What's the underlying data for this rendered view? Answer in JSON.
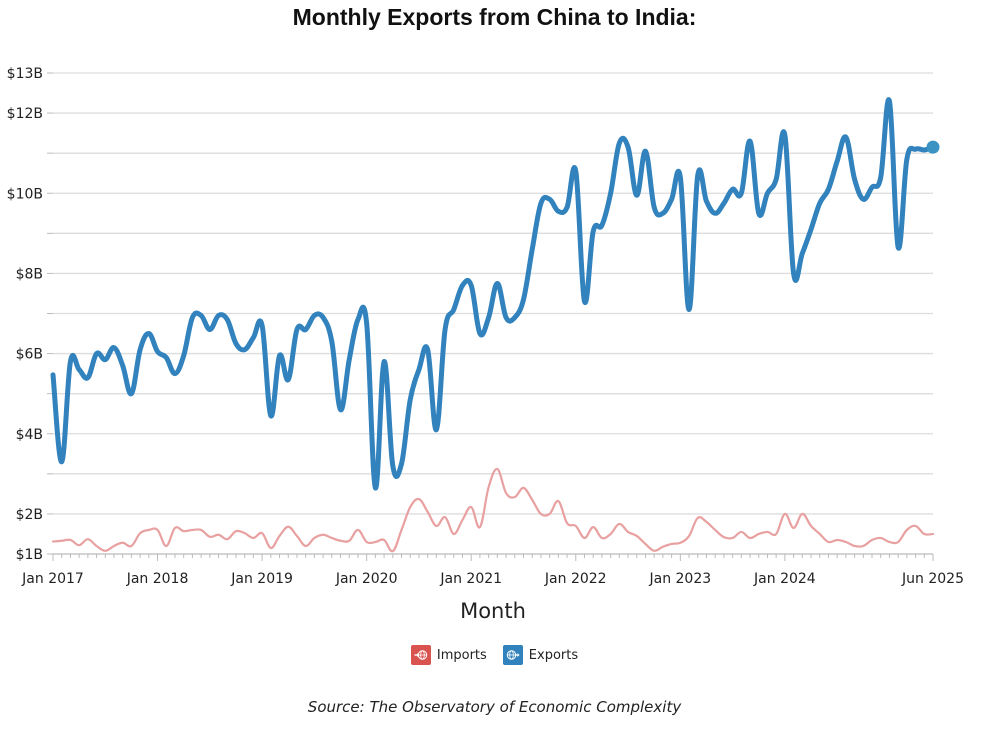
{
  "colors": {
    "exports": "#3182bd",
    "imports": "#e8a0a0",
    "imports_legend": "#d9534f",
    "grid": "#dddddd",
    "axis": "#bbbbbb",
    "end_marker": "#3a93c3"
  },
  "legend": {
    "items": [
      {
        "label": "Imports",
        "icon": "globe-arrow-in-icon"
      },
      {
        "label": "Exports",
        "icon": "globe-arrow-out-icon"
      }
    ]
  },
  "source": "Source: The Observatory of Economic Complexity",
  "chart_data": {
    "type": "line",
    "title": "Monthly Exports from China to India:",
    "xlabel": "Month",
    "ylabel": "",
    "ylim": [
      1,
      13
    ],
    "grid": true,
    "legend_position": "bottom",
    "y_ticks": [
      {
        "value": 13,
        "label": "$13B"
      },
      {
        "value": 12,
        "label": "$12B"
      },
      {
        "value": 11,
        "label": ""
      },
      {
        "value": 10,
        "label": "$10B"
      },
      {
        "value": 9,
        "label": ""
      },
      {
        "value": 8,
        "label": "$8B"
      },
      {
        "value": 7,
        "label": ""
      },
      {
        "value": 6,
        "label": "$6B"
      },
      {
        "value": 5,
        "label": ""
      },
      {
        "value": 4,
        "label": "$4B"
      },
      {
        "value": 3,
        "label": ""
      },
      {
        "value": 2,
        "label": "$2B"
      },
      {
        "value": 1,
        "label": "$1B"
      }
    ],
    "x_start": "Jan 2017",
    "x_end": "Jun 2025",
    "x_count": 102,
    "x_ticks": [
      {
        "index": 0,
        "label": "Jan 2017"
      },
      {
        "index": 12,
        "label": "Jan 2018"
      },
      {
        "index": 24,
        "label": "Jan 2019"
      },
      {
        "index": 36,
        "label": "Jan 2020"
      },
      {
        "index": 48,
        "label": "Jan 2021"
      },
      {
        "index": 60,
        "label": "Jan 2022"
      },
      {
        "index": 72,
        "label": "Jan 2023"
      },
      {
        "index": 84,
        "label": "Jan 2024"
      },
      {
        "index": 101,
        "label": "Jun 2025"
      }
    ],
    "units": "USD billions",
    "series": [
      {
        "name": "Exports",
        "values": [
          5.47,
          3.3,
          5.8,
          5.6,
          5.4,
          6.0,
          5.85,
          6.15,
          5.7,
          5.0,
          6.1,
          6.5,
          6.05,
          5.9,
          5.5,
          5.95,
          6.9,
          6.95,
          6.6,
          6.95,
          6.85,
          6.25,
          6.1,
          6.4,
          6.7,
          4.45,
          5.95,
          5.35,
          6.6,
          6.6,
          6.95,
          6.9,
          6.3,
          4.6,
          5.85,
          6.85,
          6.75,
          2.65,
          5.8,
          3.2,
          3.25,
          4.85,
          5.6,
          6.1,
          4.1,
          6.6,
          7.1,
          7.7,
          7.7,
          6.5,
          6.9,
          7.75,
          6.9,
          6.9,
          7.35,
          8.6,
          9.75,
          9.85,
          9.55,
          9.65,
          10.55,
          7.3,
          9.05,
          9.2,
          10.0,
          11.25,
          11.15,
          9.95,
          11.05,
          9.65,
          9.5,
          9.85,
          10.4,
          7.1,
          10.45,
          9.8,
          9.5,
          9.75,
          10.1,
          10.0,
          11.3,
          9.5,
          10.0,
          10.35,
          11.45,
          8.0,
          8.5,
          9.1,
          9.75,
          10.1,
          10.8,
          11.4,
          10.35,
          9.85,
          10.15,
          10.4,
          12.3,
          8.65,
          10.85,
          11.1,
          11.08,
          11.15
        ]
      },
      {
        "name": "Imports",
        "values": [
          1.31,
          1.33,
          1.35,
          1.22,
          1.37,
          1.2,
          1.08,
          1.2,
          1.28,
          1.2,
          1.52,
          1.6,
          1.6,
          1.2,
          1.65,
          1.57,
          1.6,
          1.6,
          1.43,
          1.48,
          1.37,
          1.57,
          1.52,
          1.4,
          1.52,
          1.15,
          1.45,
          1.68,
          1.45,
          1.2,
          1.4,
          1.48,
          1.4,
          1.33,
          1.33,
          1.6,
          1.3,
          1.3,
          1.35,
          1.07,
          1.6,
          2.17,
          2.37,
          2.05,
          1.7,
          1.92,
          1.5,
          1.85,
          2.17,
          1.67,
          2.67,
          3.12,
          2.52,
          2.42,
          2.65,
          2.35,
          2.0,
          2.0,
          2.32,
          1.77,
          1.7,
          1.4,
          1.67,
          1.4,
          1.5,
          1.75,
          1.55,
          1.45,
          1.25,
          1.08,
          1.18,
          1.25,
          1.28,
          1.45,
          1.9,
          1.8,
          1.6,
          1.42,
          1.4,
          1.55,
          1.4,
          1.5,
          1.55,
          1.5,
          2.0,
          1.65,
          2.0,
          1.7,
          1.5,
          1.3,
          1.35,
          1.3,
          1.2,
          1.2,
          1.35,
          1.4,
          1.3,
          1.3,
          1.6,
          1.7,
          1.5,
          1.5
        ]
      }
    ]
  }
}
